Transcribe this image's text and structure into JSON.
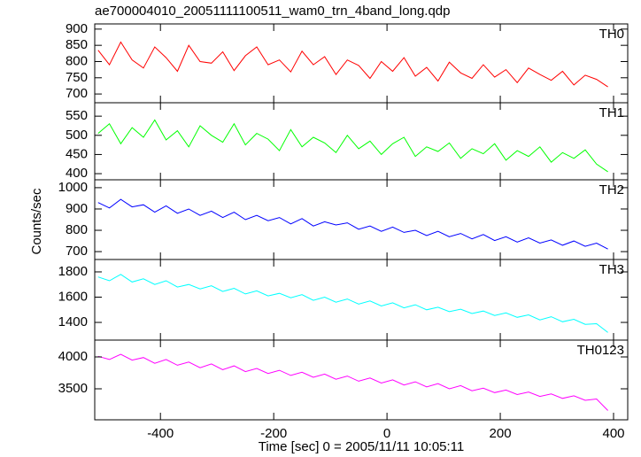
{
  "chart_data": [
    {
      "type": "line",
      "title": "ae700004010_20051111100511_wam0_trn_4band_long.qdp",
      "x": [
        -510,
        -490,
        -470,
        -450,
        -430,
        -410,
        -390,
        -370,
        -350,
        -330,
        -310,
        -290,
        -270,
        -250,
        -230,
        -210,
        -190,
        -170,
        -150,
        -130,
        -110,
        -90,
        -70,
        -50,
        -30,
        -10,
        10,
        30,
        50,
        70,
        90,
        110,
        130,
        150,
        170,
        190,
        210,
        230,
        250,
        270,
        290,
        310,
        330,
        350,
        370,
        390
      ],
      "series": [
        {
          "name": "TH0",
          "color": "#ff0000",
          "values": [
            835,
            790,
            860,
            805,
            780,
            845,
            812,
            770,
            850,
            800,
            795,
            830,
            772,
            818,
            845,
            790,
            805,
            768,
            832,
            790,
            815,
            760,
            805,
            788,
            748,
            800,
            770,
            812,
            755,
            782,
            740,
            798,
            765,
            748,
            790,
            752,
            775,
            735,
            780,
            760,
            742,
            770,
            728,
            758,
            745,
            722
          ]
        }
      ],
      "xlim": [
        -516,
        425
      ],
      "ylim": [
        673,
        916
      ],
      "yticks": [
        700,
        750,
        800,
        850,
        900
      ]
    },
    {
      "type": "line",
      "x": [
        -510,
        -490,
        -470,
        -450,
        -430,
        -410,
        -390,
        -370,
        -350,
        -330,
        -310,
        -290,
        -270,
        -250,
        -230,
        -210,
        -190,
        -170,
        -150,
        -130,
        -110,
        -90,
        -70,
        -50,
        -30,
        -10,
        10,
        30,
        50,
        70,
        90,
        110,
        130,
        150,
        170,
        190,
        210,
        230,
        250,
        270,
        290,
        310,
        330,
        350,
        370,
        390
      ],
      "series": [
        {
          "name": "TH1",
          "color": "#00ff00",
          "values": [
            505,
            530,
            478,
            520,
            495,
            540,
            488,
            512,
            470,
            525,
            500,
            482,
            530,
            475,
            505,
            490,
            460,
            515,
            470,
            495,
            480,
            455,
            500,
            465,
            485,
            450,
            478,
            495,
            445,
            470,
            458,
            480,
            440,
            465,
            452,
            478,
            435,
            460,
            445,
            470,
            430,
            455,
            440,
            462,
            425,
            405
          ]
        }
      ],
      "xlim": [
        -516,
        425
      ],
      "ylim": [
        384,
        585
      ],
      "yticks": [
        400,
        450,
        500,
        550
      ]
    },
    {
      "type": "line",
      "ylabel": "Counts/sec",
      "x": [
        -510,
        -490,
        -470,
        -450,
        -430,
        -410,
        -390,
        -370,
        -350,
        -330,
        -310,
        -290,
        -270,
        -250,
        -230,
        -210,
        -190,
        -170,
        -150,
        -130,
        -110,
        -90,
        -70,
        -50,
        -30,
        -10,
        10,
        30,
        50,
        70,
        90,
        110,
        130,
        150,
        170,
        190,
        210,
        230,
        250,
        270,
        290,
        310,
        330,
        350,
        370,
        390
      ],
      "series": [
        {
          "name": "TH2",
          "color": "#0000ff",
          "values": [
            930,
            905,
            945,
            910,
            920,
            885,
            915,
            880,
            900,
            870,
            890,
            860,
            885,
            850,
            870,
            845,
            860,
            830,
            855,
            820,
            840,
            825,
            835,
            805,
            820,
            795,
            815,
            790,
            800,
            775,
            795,
            770,
            785,
            760,
            780,
            752,
            770,
            745,
            765,
            740,
            755,
            730,
            750,
            725,
            740,
            712
          ]
        }
      ],
      "xlim": [
        -516,
        425
      ],
      "ylim": [
        663,
        1037
      ],
      "yticks": [
        700,
        800,
        900,
        1000
      ]
    },
    {
      "type": "line",
      "x": [
        -510,
        -490,
        -470,
        -450,
        -430,
        -410,
        -390,
        -370,
        -350,
        -330,
        -310,
        -290,
        -270,
        -250,
        -230,
        -210,
        -190,
        -170,
        -150,
        -130,
        -110,
        -90,
        -70,
        -50,
        -30,
        -10,
        10,
        30,
        50,
        70,
        90,
        110,
        130,
        150,
        170,
        190,
        210,
        230,
        250,
        270,
        290,
        310,
        330,
        350,
        370,
        390
      ],
      "series": [
        {
          "name": "TH3",
          "color": "#00ffff",
          "values": [
            1760,
            1730,
            1780,
            1720,
            1745,
            1700,
            1730,
            1680,
            1700,
            1665,
            1690,
            1645,
            1670,
            1625,
            1650,
            1610,
            1630,
            1595,
            1620,
            1575,
            1600,
            1560,
            1585,
            1545,
            1570,
            1530,
            1555,
            1515,
            1540,
            1500,
            1520,
            1485,
            1505,
            1470,
            1490,
            1455,
            1475,
            1440,
            1460,
            1420,
            1445,
            1405,
            1425,
            1385,
            1390,
            1320
          ]
        }
      ],
      "xlim": [
        -516,
        425
      ],
      "ylim": [
        1260,
        1898
      ],
      "yticks": [
        1400,
        1600,
        1800
      ]
    },
    {
      "type": "line",
      "xlabel": "Time [sec] 0 = 2005/11/11 10:05:11",
      "x": [
        -510,
        -490,
        -470,
        -450,
        -430,
        -410,
        -390,
        -370,
        -350,
        -330,
        -310,
        -290,
        -270,
        -250,
        -230,
        -210,
        -190,
        -170,
        -150,
        -130,
        -110,
        -90,
        -70,
        -50,
        -30,
        -10,
        10,
        30,
        50,
        70,
        90,
        110,
        130,
        150,
        170,
        190,
        210,
        230,
        250,
        270,
        290,
        310,
        330,
        350,
        370,
        390
      ],
      "series": [
        {
          "name": "TH0123",
          "color": "#ff00ff",
          "values": [
            4010,
            3960,
            4040,
            3950,
            3990,
            3900,
            3960,
            3870,
            3920,
            3830,
            3890,
            3800,
            3860,
            3770,
            3820,
            3740,
            3790,
            3710,
            3760,
            3680,
            3730,
            3650,
            3700,
            3620,
            3670,
            3590,
            3640,
            3560,
            3610,
            3530,
            3580,
            3500,
            3550,
            3470,
            3510,
            3440,
            3480,
            3410,
            3450,
            3380,
            3420,
            3350,
            3390,
            3320,
            3340,
            3160
          ]
        }
      ],
      "xlim": [
        -516,
        425
      ],
      "ylim": [
        3014,
        4264
      ],
      "yticks": [
        3500,
        4000
      ],
      "xticks": [
        -400,
        -200,
        0,
        200,
        400
      ]
    }
  ]
}
